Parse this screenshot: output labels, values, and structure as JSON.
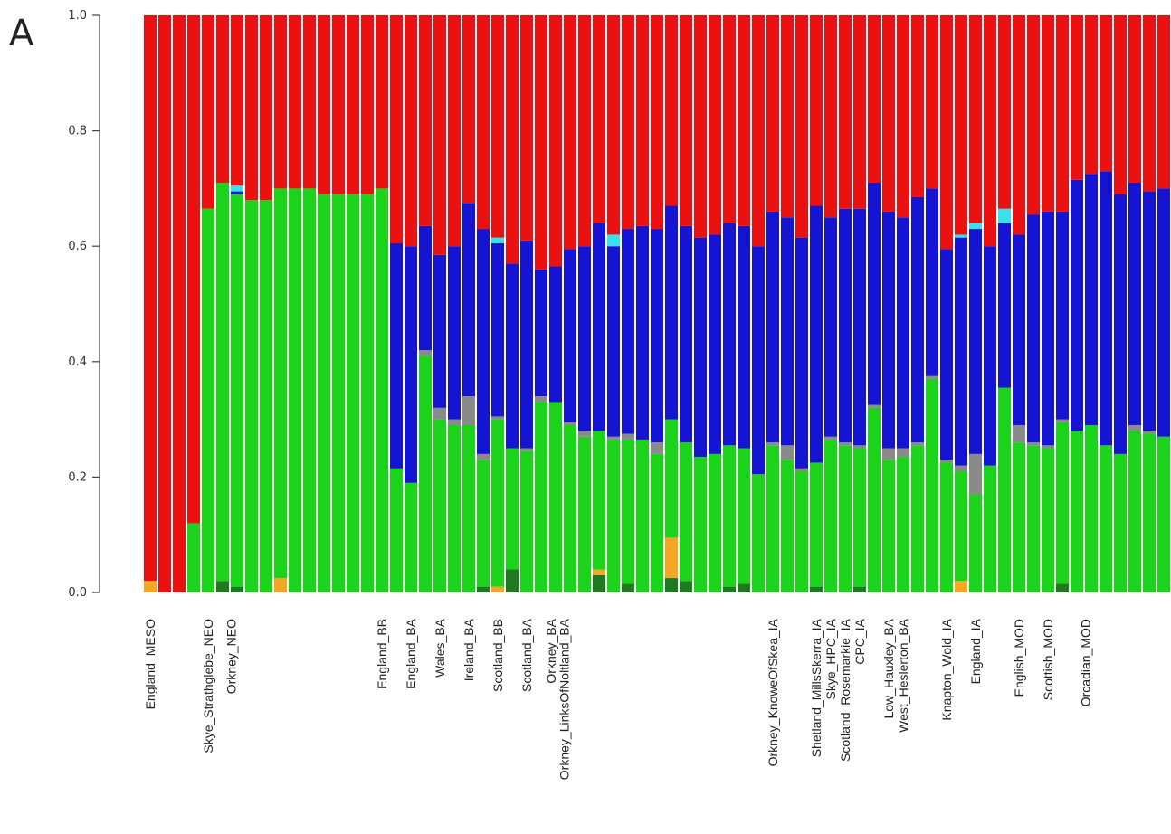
{
  "panel_label": "A",
  "chart_data": {
    "type": "bar",
    "stacked": true,
    "title": "",
    "xlabel": "",
    "ylabel": "",
    "ylim": [
      0,
      1
    ],
    "yticks": [
      "0.0",
      "0.2",
      "0.4",
      "0.6",
      "0.8",
      "1.0"
    ],
    "grid": false,
    "legend": "none",
    "n_bars": 78,
    "component_colors": {
      "darkgreen": "#1e7a1e",
      "orange": "#f5a623",
      "green": "#19d419",
      "grey": "#8a8a8a",
      "blue": "#1414d2",
      "cyan": "#35e2ee",
      "red": "#ec1111"
    },
    "bars": [
      {
        "darkgreen": 0.0,
        "orange": 0.02,
        "green": 0.0,
        "grey": 0,
        "blue": 0.0,
        "cyan": 0.0,
        "red": 0.98
      },
      {
        "darkgreen": 0.0,
        "orange": 0.0,
        "green": 0.0,
        "grey": 0,
        "blue": 0.0,
        "cyan": 0.0,
        "red": 1.0
      },
      {
        "darkgreen": 0.0,
        "orange": 0.0,
        "green": 0.0,
        "grey": 0,
        "blue": 0.0,
        "cyan": 0.0,
        "red": 1.0
      },
      {
        "darkgreen": 0.0,
        "orange": 0.0,
        "green": 0.12,
        "grey": 0,
        "blue": 0.0,
        "cyan": 0.0,
        "red": 0.88
      },
      {
        "darkgreen": 0.0,
        "orange": 0.0,
        "green": 0.665,
        "grey": 0,
        "blue": 0.0,
        "cyan": 0.0,
        "red": 0.335
      },
      {
        "darkgreen": 0.02,
        "orange": 0.0,
        "green": 0.69,
        "grey": 0,
        "blue": 0.0,
        "cyan": 0.0,
        "red": 0.29
      },
      {
        "darkgreen": 0.01,
        "orange": 0.0,
        "green": 0.68,
        "grey": 0,
        "blue": 0.005,
        "cyan": 0.01,
        "red": 0.295
      },
      {
        "darkgreen": 0.0,
        "orange": 0.0,
        "green": 0.68,
        "grey": 0,
        "blue": 0.0,
        "cyan": 0.0,
        "red": 0.32
      },
      {
        "darkgreen": 0.0,
        "orange": 0.0,
        "green": 0.68,
        "grey": 0,
        "blue": 0.0,
        "cyan": 0.0,
        "red": 0.32
      },
      {
        "darkgreen": 0.0,
        "orange": 0.025,
        "green": 0.675,
        "grey": 0,
        "blue": 0.0,
        "cyan": 0.0,
        "red": 0.3
      },
      {
        "darkgreen": 0.0,
        "orange": 0.0,
        "green": 0.7,
        "grey": 0,
        "blue": 0.0,
        "cyan": 0.0,
        "red": 0.3
      },
      {
        "darkgreen": 0.0,
        "orange": 0.0,
        "green": 0.7,
        "grey": 0,
        "blue": 0.0,
        "cyan": 0.0,
        "red": 0.3
      },
      {
        "darkgreen": 0.0,
        "orange": 0.0,
        "green": 0.69,
        "grey": 0,
        "blue": 0.0,
        "cyan": 0.0,
        "red": 0.31
      },
      {
        "darkgreen": 0.0,
        "orange": 0.0,
        "green": 0.69,
        "grey": 0,
        "blue": 0.0,
        "cyan": 0.0,
        "red": 0.31
      },
      {
        "darkgreen": 0.0,
        "orange": 0.0,
        "green": 0.69,
        "grey": 0,
        "blue": 0.0,
        "cyan": 0.0,
        "red": 0.31
      },
      {
        "darkgreen": 0.0,
        "orange": 0.0,
        "green": 0.69,
        "grey": 0,
        "blue": 0.0,
        "cyan": 0.0,
        "red": 0.31
      },
      {
        "darkgreen": 0.0,
        "orange": 0.0,
        "green": 0.7,
        "grey": 0,
        "blue": 0.0,
        "cyan": 0.0,
        "red": 0.3
      },
      {
        "darkgreen": 0.0,
        "orange": 0.0,
        "green": 0.215,
        "grey": 0,
        "blue": 0.39,
        "cyan": 0.0,
        "red": 0.395
      },
      {
        "darkgreen": 0.0,
        "orange": 0.0,
        "green": 0.19,
        "grey": 0,
        "blue": 0.41,
        "cyan": 0.0,
        "red": 0.4
      },
      {
        "darkgreen": 0.0,
        "orange": 0.0,
        "green": 0.41,
        "grey": 0.01,
        "blue": 0.215,
        "cyan": 0.0,
        "red": 0.365
      },
      {
        "darkgreen": 0.0,
        "orange": 0.0,
        "green": 0.3,
        "grey": 0.02,
        "blue": 0.265,
        "cyan": 0.0,
        "red": 0.415
      },
      {
        "darkgreen": 0.0,
        "orange": 0.0,
        "green": 0.29,
        "grey": 0.01,
        "blue": 0.3,
        "cyan": 0.0,
        "red": 0.4
      },
      {
        "darkgreen": 0.0,
        "orange": 0.0,
        "green": 0.29,
        "grey": 0.05,
        "blue": 0.335,
        "cyan": 0.0,
        "red": 0.325
      },
      {
        "darkgreen": 0.01,
        "orange": 0.0,
        "green": 0.22,
        "grey": 0.01,
        "blue": 0.39,
        "cyan": 0.0,
        "red": 0.37
      },
      {
        "darkgreen": 0.0,
        "orange": 0.01,
        "green": 0.29,
        "grey": 0.005,
        "blue": 0.3,
        "cyan": 0.01,
        "red": 0.385
      },
      {
        "darkgreen": 0.04,
        "orange": 0.0,
        "green": 0.21,
        "grey": 0.0,
        "blue": 0.32,
        "cyan": 0.0,
        "red": 0.43
      },
      {
        "darkgreen": 0.0,
        "orange": 0.0,
        "green": 0.245,
        "grey": 0.005,
        "blue": 0.36,
        "cyan": 0.0,
        "red": 0.39
      },
      {
        "darkgreen": 0.0,
        "orange": 0.0,
        "green": 0.33,
        "grey": 0.01,
        "blue": 0.22,
        "cyan": 0.0,
        "red": 0.44
      },
      {
        "darkgreen": 0.0,
        "orange": 0.0,
        "green": 0.33,
        "grey": 0.0,
        "blue": 0.235,
        "cyan": 0.0,
        "red": 0.435
      },
      {
        "darkgreen": 0.0,
        "orange": 0.0,
        "green": 0.29,
        "grey": 0.005,
        "blue": 0.3,
        "cyan": 0.0,
        "red": 0.405
      },
      {
        "darkgreen": 0.0,
        "orange": 0.0,
        "green": 0.27,
        "grey": 0.01,
        "blue": 0.32,
        "cyan": 0.0,
        "red": 0.4
      },
      {
        "darkgreen": 0.03,
        "orange": 0.01,
        "green": 0.24,
        "grey": 0.0,
        "blue": 0.36,
        "cyan": 0.0,
        "red": 0.36
      },
      {
        "darkgreen": 0.0,
        "orange": 0.0,
        "green": 0.265,
        "grey": 0.005,
        "blue": 0.33,
        "cyan": 0.02,
        "red": 0.38
      },
      {
        "darkgreen": 0.015,
        "orange": 0.0,
        "green": 0.25,
        "grey": 0.01,
        "blue": 0.355,
        "cyan": 0.0,
        "red": 0.37
      },
      {
        "darkgreen": 0.0,
        "orange": 0.0,
        "green": 0.265,
        "grey": 0.0,
        "blue": 0.37,
        "cyan": 0.0,
        "red": 0.365
      },
      {
        "darkgreen": 0.0,
        "orange": 0.0,
        "green": 0.24,
        "grey": 0.02,
        "blue": 0.37,
        "cyan": 0.0,
        "red": 0.37
      },
      {
        "darkgreen": 0.025,
        "orange": 0.07,
        "green": 0.205,
        "grey": 0.0,
        "blue": 0.37,
        "cyan": 0.0,
        "red": 0.33
      },
      {
        "darkgreen": 0.02,
        "orange": 0.0,
        "green": 0.24,
        "grey": 0.0,
        "blue": 0.375,
        "cyan": 0.0,
        "red": 0.365
      },
      {
        "darkgreen": 0.0,
        "orange": 0.0,
        "green": 0.235,
        "grey": 0.0,
        "blue": 0.38,
        "cyan": 0.0,
        "red": 0.385
      },
      {
        "darkgreen": 0.0,
        "orange": 0.0,
        "green": 0.24,
        "grey": 0.0,
        "blue": 0.38,
        "cyan": 0.0,
        "red": 0.38
      },
      {
        "darkgreen": 0.01,
        "orange": 0.0,
        "green": 0.245,
        "grey": 0.0,
        "blue": 0.385,
        "cyan": 0.0,
        "red": 0.36
      },
      {
        "darkgreen": 0.015,
        "orange": 0.0,
        "green": 0.235,
        "grey": 0.0,
        "blue": 0.385,
        "cyan": 0.0,
        "red": 0.365
      },
      {
        "darkgreen": 0.0,
        "orange": 0.0,
        "green": 0.205,
        "grey": 0.0,
        "blue": 0.395,
        "cyan": 0.0,
        "red": 0.4
      },
      {
        "darkgreen": 0.0,
        "orange": 0.0,
        "green": 0.255,
        "grey": 0.005,
        "blue": 0.4,
        "cyan": 0.0,
        "red": 0.34
      },
      {
        "darkgreen": 0.0,
        "orange": 0.0,
        "green": 0.23,
        "grey": 0.025,
        "blue": 0.395,
        "cyan": 0.0,
        "red": 0.35
      },
      {
        "darkgreen": 0.0,
        "orange": 0.0,
        "green": 0.21,
        "grey": 0.005,
        "blue": 0.4,
        "cyan": 0.0,
        "red": 0.385
      },
      {
        "darkgreen": 0.01,
        "orange": 0.0,
        "green": 0.215,
        "grey": 0.0,
        "blue": 0.445,
        "cyan": 0.0,
        "red": 0.33
      },
      {
        "darkgreen": 0.0,
        "orange": 0.0,
        "green": 0.265,
        "grey": 0.005,
        "blue": 0.38,
        "cyan": 0.0,
        "red": 0.35
      },
      {
        "darkgreen": 0.0,
        "orange": 0.0,
        "green": 0.255,
        "grey": 0.005,
        "blue": 0.405,
        "cyan": 0.0,
        "red": 0.335
      },
      {
        "darkgreen": 0.01,
        "orange": 0.0,
        "green": 0.24,
        "grey": 0.005,
        "blue": 0.41,
        "cyan": 0.0,
        "red": 0.335
      },
      {
        "darkgreen": 0.0,
        "orange": 0.0,
        "green": 0.32,
        "grey": 0.005,
        "blue": 0.385,
        "cyan": 0.0,
        "red": 0.29
      },
      {
        "darkgreen": 0.0,
        "orange": 0.0,
        "green": 0.23,
        "grey": 0.02,
        "blue": 0.41,
        "cyan": 0.0,
        "red": 0.34
      },
      {
        "darkgreen": 0.0,
        "orange": 0.0,
        "green": 0.235,
        "grey": 0.015,
        "blue": 0.4,
        "cyan": 0.0,
        "red": 0.35
      },
      {
        "darkgreen": 0.0,
        "orange": 0.0,
        "green": 0.255,
        "grey": 0.005,
        "blue": 0.425,
        "cyan": 0.0,
        "red": 0.315
      },
      {
        "darkgreen": 0.0,
        "orange": 0.0,
        "green": 0.37,
        "grey": 0.005,
        "blue": 0.325,
        "cyan": 0.0,
        "red": 0.3
      },
      {
        "darkgreen": 0.0,
        "orange": 0.0,
        "green": 0.225,
        "grey": 0.005,
        "blue": 0.365,
        "cyan": 0.0,
        "red": 0.405
      },
      {
        "darkgreen": 0.0,
        "orange": 0.02,
        "green": 0.19,
        "grey": 0.01,
        "blue": 0.395,
        "cyan": 0.005,
        "red": 0.38
      },
      {
        "darkgreen": 0.0,
        "orange": 0.0,
        "green": 0.17,
        "grey": 0.07,
        "blue": 0.39,
        "cyan": 0.01,
        "red": 0.36
      },
      {
        "darkgreen": 0.0,
        "orange": 0.0,
        "green": 0.22,
        "grey": 0.0,
        "blue": 0.38,
        "cyan": 0.0,
        "red": 0.4
      },
      {
        "darkgreen": 0.0,
        "orange": 0.0,
        "green": 0.355,
        "grey": 0.0,
        "blue": 0.285,
        "cyan": 0.025,
        "red": 0.335
      },
      {
        "darkgreen": 0.0,
        "orange": 0.0,
        "green": 0.26,
        "grey": 0.03,
        "blue": 0.33,
        "cyan": 0.0,
        "red": 0.38
      },
      {
        "darkgreen": 0.0,
        "orange": 0.0,
        "green": 0.255,
        "grey": 0.005,
        "blue": 0.395,
        "cyan": 0.0,
        "red": 0.345
      },
      {
        "darkgreen": 0.0,
        "orange": 0.0,
        "green": 0.25,
        "grey": 0.005,
        "blue": 0.405,
        "cyan": 0.0,
        "red": 0.34
      },
      {
        "darkgreen": 0.015,
        "orange": 0.0,
        "green": 0.28,
        "grey": 0.005,
        "blue": 0.36,
        "cyan": 0.0,
        "red": 0.34
      },
      {
        "darkgreen": 0.0,
        "orange": 0.0,
        "green": 0.28,
        "grey": 0.0,
        "blue": 0.435,
        "cyan": 0.0,
        "red": 0.285
      },
      {
        "darkgreen": 0.0,
        "orange": 0.0,
        "green": 0.29,
        "grey": 0.0,
        "blue": 0.435,
        "cyan": 0.0,
        "red": 0.275
      },
      {
        "darkgreen": 0.0,
        "orange": 0.0,
        "green": 0.255,
        "grey": 0.0,
        "blue": 0.475,
        "cyan": 0.0,
        "red": 0.27
      },
      {
        "darkgreen": 0.0,
        "orange": 0.0,
        "green": 0.24,
        "grey": 0.0,
        "blue": 0.45,
        "cyan": 0.0,
        "red": 0.31
      },
      {
        "darkgreen": 0.0,
        "orange": 0.0,
        "green": 0.28,
        "grey": 0.01,
        "blue": 0.42,
        "cyan": 0.0,
        "red": 0.29
      },
      {
        "darkgreen": 0.0,
        "orange": 0.0,
        "green": 0.275,
        "grey": 0.005,
        "blue": 0.415,
        "cyan": 0.0,
        "red": 0.305
      },
      {
        "darkgreen": 0.0,
        "orange": 0.0,
        "green": 0.27,
        "grey": 0.0,
        "blue": 0.43,
        "cyan": 0.0,
        "red": 0.3
      }
    ],
    "category_labels": [
      {
        "bar": 1,
        "text": "England_MESO"
      },
      {
        "bar": 5,
        "text": "Skye_Strathglebe_NEO"
      },
      {
        "bar": 6.6,
        "text": "Orkney_NEO"
      },
      {
        "bar": 17,
        "text": "England_BB"
      },
      {
        "bar": 19,
        "text": "England_BA"
      },
      {
        "bar": 21,
        "text": "Wales_BA"
      },
      {
        "bar": 23,
        "text": "Ireland_BA"
      },
      {
        "bar": 25,
        "text": "Scotland_BB"
      },
      {
        "bar": 27,
        "text": "Scotland_BA"
      },
      {
        "bar": 28.7,
        "text": "Orkney_BA"
      },
      {
        "bar": 29.6,
        "text": "Orkney_LinksOfNoltland_BA"
      },
      {
        "bar": 44,
        "text": "Orkney_KnoweOfSkea_IA"
      },
      {
        "bar": 47,
        "text": "Shetland_MillsSkerra_IA"
      },
      {
        "bar": 48,
        "text": "Skye_HPC_IA"
      },
      {
        "bar": 49,
        "text": "Scotland_Rosemarkie_IA"
      },
      {
        "bar": 50,
        "text": "CPC_IA"
      },
      {
        "bar": 52,
        "text": "Low_Hauxley_BA"
      },
      {
        "bar": 53,
        "text": "West_Heslerton_BA"
      },
      {
        "bar": 56,
        "text": "Knapton_Wold_IA"
      },
      {
        "bar": 58,
        "text": "England_IA"
      },
      {
        "bar": 61,
        "text": "English_MOD"
      },
      {
        "bar": 63,
        "text": "Scottish_MOD"
      },
      {
        "bar": 65.6,
        "text": "Orcadian_MOD"
      }
    ]
  }
}
